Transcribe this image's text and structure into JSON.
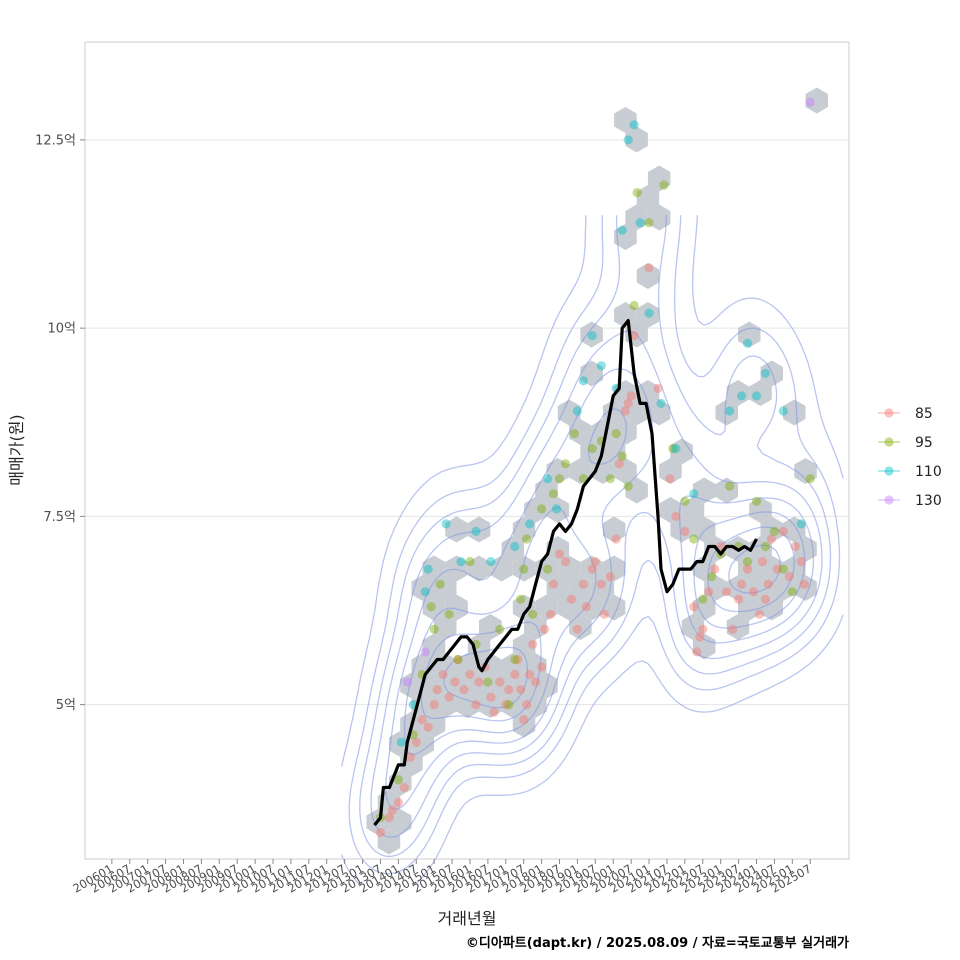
{
  "chart_data": {
    "type": "scatter",
    "xlabel": "거래년월",
    "ylabel": "매매가(원)",
    "caption": "©디아파트(dapt.kr) / 2025.08.09 / 자료=국토교통부 실거래가",
    "ylim": [
      2.95,
      13.8
    ],
    "xlim": [
      "2005-04",
      "2026-08"
    ],
    "y_ticks": [
      {
        "value": 5,
        "label": "5억"
      },
      {
        "value": 7.5,
        "label": "7.5억"
      },
      {
        "value": 10,
        "label": "10억"
      },
      {
        "value": 12.5,
        "label": "12.5억"
      }
    ],
    "x_ticks": [
      "200601",
      "200607",
      "200701",
      "200707",
      "200801",
      "200807",
      "200901",
      "200907",
      "201001",
      "201007",
      "201101",
      "201107",
      "201201",
      "201207",
      "201301",
      "201307",
      "201401",
      "201407",
      "201501",
      "201507",
      "201601",
      "201607",
      "201701",
      "201707",
      "201801",
      "201807",
      "201901",
      "201907",
      "202001",
      "202007",
      "202101",
      "202107",
      "202201",
      "202207",
      "202301",
      "202307",
      "202401",
      "202407",
      "202501",
      "202507"
    ],
    "legend": [
      {
        "label": "85",
        "color": "#F8766D"
      },
      {
        "label": "95",
        "color": "#7CAE00"
      },
      {
        "label": "110",
        "color": "#00BFC4"
      },
      {
        "label": "130",
        "color": "#C77CFF"
      }
    ],
    "series": [
      {
        "name": "85",
        "color": "#F8766D",
        "points": [
          [
            "2013-07",
            3.3
          ],
          [
            "2013-10",
            3.5
          ],
          [
            "2013-11",
            3.6
          ],
          [
            "2014-01",
            3.7
          ],
          [
            "2014-03",
            3.9
          ],
          [
            "2014-05",
            4.3
          ],
          [
            "2014-07",
            4.5
          ],
          [
            "2014-09",
            4.8
          ],
          [
            "2014-11",
            4.7
          ],
          [
            "2015-01",
            5.0
          ],
          [
            "2015-02",
            5.2
          ],
          [
            "2015-04",
            5.4
          ],
          [
            "2015-06",
            5.1
          ],
          [
            "2015-08",
            5.3
          ],
          [
            "2015-09",
            5.6
          ],
          [
            "2015-11",
            5.2
          ],
          [
            "2016-01",
            5.4
          ],
          [
            "2016-03",
            5.0
          ],
          [
            "2016-04",
            5.3
          ],
          [
            "2016-06",
            5.5
          ],
          [
            "2016-08",
            5.1
          ],
          [
            "2016-09",
            4.9
          ],
          [
            "2016-11",
            5.3
          ],
          [
            "2017-01",
            5.0
          ],
          [
            "2017-02",
            5.2
          ],
          [
            "2017-04",
            5.4
          ],
          [
            "2017-05",
            5.6
          ],
          [
            "2017-06",
            5.2
          ],
          [
            "2017-07",
            4.8
          ],
          [
            "2017-08",
            5.0
          ],
          [
            "2017-09",
            5.4
          ],
          [
            "2017-10",
            5.8
          ],
          [
            "2017-11",
            5.3
          ],
          [
            "2018-01",
            5.5
          ],
          [
            "2018-02",
            6.0
          ],
          [
            "2018-04",
            6.2
          ],
          [
            "2018-05",
            6.6
          ],
          [
            "2018-07",
            7.0
          ],
          [
            "2018-09",
            6.9
          ],
          [
            "2018-11",
            6.4
          ],
          [
            "2019-01",
            6.0
          ],
          [
            "2019-03",
            6.6
          ],
          [
            "2019-04",
            6.3
          ],
          [
            "2019-06",
            6.8
          ],
          [
            "2019-07",
            6.9
          ],
          [
            "2019-09",
            6.6
          ],
          [
            "2019-10",
            6.2
          ],
          [
            "2019-12",
            6.7
          ],
          [
            "2020-02",
            7.2
          ],
          [
            "2020-03",
            8.2
          ],
          [
            "2020-05",
            8.9
          ],
          [
            "2020-06",
            9.0
          ],
          [
            "2020-07",
            9.1
          ],
          [
            "2020-08",
            9.9
          ],
          [
            "2021-01",
            10.8
          ],
          [
            "2021-04",
            9.2
          ],
          [
            "2021-08",
            8.0
          ],
          [
            "2021-10",
            7.5
          ],
          [
            "2022-01",
            7.3
          ],
          [
            "2022-04",
            6.3
          ],
          [
            "2022-05",
            5.7
          ],
          [
            "2022-06",
            5.9
          ],
          [
            "2022-07",
            6.0
          ],
          [
            "2022-09",
            6.5
          ],
          [
            "2022-11",
            6.8
          ],
          [
            "2023-01",
            7.1
          ],
          [
            "2023-03",
            6.5
          ],
          [
            "2023-05",
            6.0
          ],
          [
            "2023-07",
            6.4
          ],
          [
            "2023-08",
            6.6
          ],
          [
            "2023-10",
            6.8
          ],
          [
            "2023-12",
            6.5
          ],
          [
            "2024-02",
            6.2
          ],
          [
            "2024-03",
            6.9
          ],
          [
            "2024-04",
            6.4
          ],
          [
            "2024-05",
            6.6
          ],
          [
            "2024-06",
            7.2
          ],
          [
            "2024-08",
            6.8
          ],
          [
            "2024-10",
            7.3
          ],
          [
            "2024-12",
            6.7
          ],
          [
            "2025-02",
            7.1
          ],
          [
            "2025-04",
            6.9
          ],
          [
            "2025-05",
            6.6
          ]
        ]
      },
      {
        "name": "95",
        "color": "#7CAE00",
        "points": [
          [
            "2013-07",
            3.5
          ],
          [
            "2014-01",
            4.0
          ],
          [
            "2014-06",
            4.6
          ],
          [
            "2014-09",
            5.4
          ],
          [
            "2014-12",
            6.3
          ],
          [
            "2015-01",
            6.0
          ],
          [
            "2015-03",
            6.6
          ],
          [
            "2015-06",
            6.2
          ],
          [
            "2015-09",
            5.6
          ],
          [
            "2016-01",
            6.9
          ],
          [
            "2016-03",
            5.8
          ],
          [
            "2016-07",
            5.3
          ],
          [
            "2016-11",
            6.0
          ],
          [
            "2017-02",
            5.0
          ],
          [
            "2017-04",
            5.6
          ],
          [
            "2017-06",
            6.4
          ],
          [
            "2017-07",
            6.8
          ],
          [
            "2017-08",
            7.2
          ],
          [
            "2017-10",
            6.2
          ],
          [
            "2018-01",
            7.6
          ],
          [
            "2018-03",
            6.8
          ],
          [
            "2018-05",
            7.8
          ],
          [
            "2018-07",
            8.0
          ],
          [
            "2018-09",
            8.2
          ],
          [
            "2018-12",
            8.6
          ],
          [
            "2019-03",
            8.0
          ],
          [
            "2019-06",
            8.4
          ],
          [
            "2019-09",
            8.5
          ],
          [
            "2019-12",
            8.0
          ],
          [
            "2020-02",
            8.6
          ],
          [
            "2020-04",
            8.3
          ],
          [
            "2020-06",
            7.9
          ],
          [
            "2020-08",
            10.3
          ],
          [
            "2020-09",
            11.8
          ],
          [
            "2021-01",
            11.4
          ],
          [
            "2021-06",
            11.9
          ],
          [
            "2021-09",
            8.4
          ],
          [
            "2022-01",
            7.7
          ],
          [
            "2022-04",
            7.2
          ],
          [
            "2022-07",
            6.4
          ],
          [
            "2022-10",
            6.7
          ],
          [
            "2023-01",
            7.0
          ],
          [
            "2023-04",
            7.9
          ],
          [
            "2023-07",
            7.1
          ],
          [
            "2023-10",
            6.9
          ],
          [
            "2024-01",
            7.7
          ],
          [
            "2024-04",
            7.1
          ],
          [
            "2024-07",
            7.3
          ],
          [
            "2024-10",
            6.8
          ],
          [
            "2025-01",
            6.5
          ],
          [
            "2025-07",
            8.0
          ]
        ]
      },
      {
        "name": "110",
        "color": "#00BFC4",
        "points": [
          [
            "2014-02",
            4.5
          ],
          [
            "2014-06",
            5.0
          ],
          [
            "2014-10",
            6.5
          ],
          [
            "2014-11",
            6.8
          ],
          [
            "2015-05",
            7.4
          ],
          [
            "2015-10",
            6.9
          ],
          [
            "2016-03",
            7.3
          ],
          [
            "2016-08",
            6.9
          ],
          [
            "2017-04",
            7.1
          ],
          [
            "2017-09",
            7.4
          ],
          [
            "2018-03",
            8.0
          ],
          [
            "2018-06",
            7.6
          ],
          [
            "2019-01",
            8.9
          ],
          [
            "2019-03",
            9.3
          ],
          [
            "2019-06",
            9.9
          ],
          [
            "2019-09",
            9.5
          ],
          [
            "2020-02",
            9.2
          ],
          [
            "2020-04",
            11.3
          ],
          [
            "2020-06",
            12.5
          ],
          [
            "2020-08",
            12.7
          ],
          [
            "2020-10",
            11.4
          ],
          [
            "2021-01",
            10.2
          ],
          [
            "2021-05",
            9.0
          ],
          [
            "2021-10",
            8.4
          ],
          [
            "2022-04",
            7.8
          ],
          [
            "2023-04",
            8.9
          ],
          [
            "2023-08",
            9.1
          ],
          [
            "2023-10",
            9.8
          ],
          [
            "2024-01",
            9.1
          ],
          [
            "2024-04",
            9.4
          ],
          [
            "2024-10",
            8.9
          ],
          [
            "2025-04",
            7.4
          ]
        ]
      },
      {
        "name": "130",
        "color": "#C77CFF",
        "points": [
          [
            "2014-04",
            5.3
          ],
          [
            "2014-10",
            5.7
          ],
          [
            "2025-07",
            13.0
          ]
        ]
      }
    ],
    "trend_line": {
      "name": "moving average",
      "color": "#000000",
      "points": [
        [
          "2013-05",
          3.4
        ],
        [
          "2013-07",
          3.5
        ],
        [
          "2013-08",
          3.9
        ],
        [
          "2013-10",
          3.9
        ],
        [
          "2013-11",
          4.0
        ],
        [
          "2014-01",
          4.2
        ],
        [
          "2014-03",
          4.2
        ],
        [
          "2014-04",
          4.5
        ],
        [
          "2014-06",
          4.8
        ],
        [
          "2014-08",
          5.1
        ],
        [
          "2014-10",
          5.4
        ],
        [
          "2014-12",
          5.5
        ],
        [
          "2015-02",
          5.6
        ],
        [
          "2015-04",
          5.6
        ],
        [
          "2015-06",
          5.7
        ],
        [
          "2015-08",
          5.8
        ],
        [
          "2015-10",
          5.9
        ],
        [
          "2015-12",
          5.9
        ],
        [
          "2016-02",
          5.8
        ],
        [
          "2016-04",
          5.5
        ],
        [
          "2016-05",
          5.45
        ],
        [
          "2016-07",
          5.6
        ],
        [
          "2016-09",
          5.7
        ],
        [
          "2016-11",
          5.8
        ],
        [
          "2017-01",
          5.9
        ],
        [
          "2017-03",
          6.0
        ],
        [
          "2017-05",
          6.0
        ],
        [
          "2017-07",
          6.2
        ],
        [
          "2017-09",
          6.3
        ],
        [
          "2017-11",
          6.6
        ],
        [
          "2018-01",
          6.9
        ],
        [
          "2018-03",
          7.0
        ],
        [
          "2018-05",
          7.3
        ],
        [
          "2018-07",
          7.4
        ],
        [
          "2018-09",
          7.3
        ],
        [
          "2018-11",
          7.4
        ],
        [
          "2019-01",
          7.6
        ],
        [
          "2019-03",
          7.9
        ],
        [
          "2019-05",
          8.0
        ],
        [
          "2019-07",
          8.1
        ],
        [
          "2019-09",
          8.3
        ],
        [
          "2019-11",
          8.7
        ],
        [
          "2020-01",
          9.1
        ],
        [
          "2020-03",
          9.2
        ],
        [
          "2020-04",
          10.0
        ],
        [
          "2020-06",
          10.1
        ],
        [
          "2020-08",
          9.4
        ],
        [
          "2020-10",
          9.0
        ],
        [
          "2020-12",
          9.0
        ],
        [
          "2021-02",
          8.6
        ],
        [
          "2021-04",
          7.5
        ],
        [
          "2021-05",
          6.8
        ],
        [
          "2021-07",
          6.5
        ],
        [
          "2021-09",
          6.6
        ],
        [
          "2021-11",
          6.8
        ],
        [
          "2022-01",
          6.8
        ],
        [
          "2022-03",
          6.8
        ],
        [
          "2022-05",
          6.9
        ],
        [
          "2022-07",
          6.9
        ],
        [
          "2022-09",
          7.1
        ],
        [
          "2022-11",
          7.1
        ],
        [
          "2023-01",
          7.0
        ],
        [
          "2023-03",
          7.1
        ],
        [
          "2023-05",
          7.1
        ],
        [
          "2023-07",
          7.05
        ],
        [
          "2023-09",
          7.1
        ],
        [
          "2023-11",
          7.05
        ],
        [
          "2024-01",
          7.2
        ]
      ]
    }
  }
}
